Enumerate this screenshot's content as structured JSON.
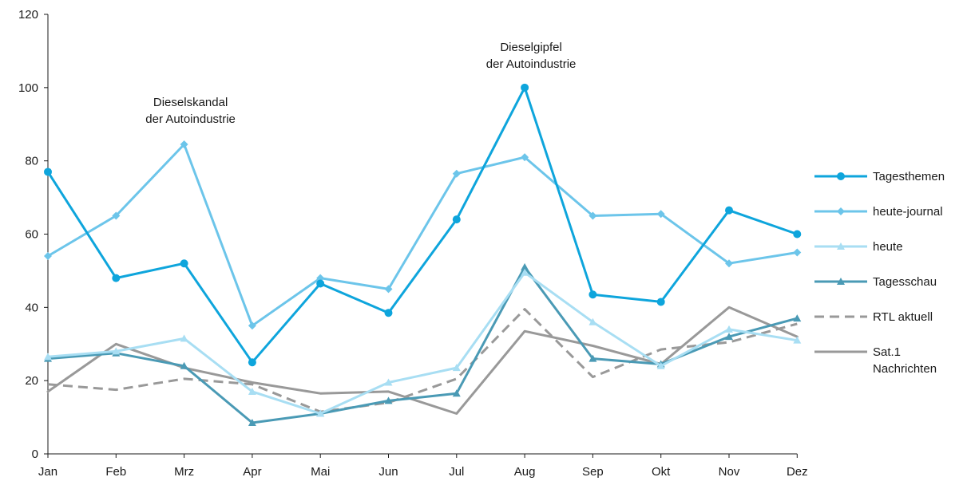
{
  "chart_data": {
    "type": "line",
    "categories": [
      "Jan",
      "Feb",
      "Mrz",
      "Apr",
      "Mai",
      "Jun",
      "Jul",
      "Aug",
      "Sep",
      "Okt",
      "Nov",
      "Dez"
    ],
    "ylim": [
      0,
      120
    ],
    "yticks": [
      0,
      20,
      40,
      60,
      80,
      100,
      120
    ],
    "grid": false,
    "legend_position": "right",
    "series": [
      {
        "name": "Tagesthemen",
        "color": "#0ea5dc",
        "marker": "circle",
        "dash": "solid",
        "values": [
          77,
          48,
          52,
          25,
          46.5,
          38.5,
          64,
          100,
          43.5,
          41.5,
          66.5,
          60
        ]
      },
      {
        "name": "heute-journal",
        "color": "#6cc5ea",
        "marker": "diamond",
        "dash": "solid",
        "values": [
          54,
          65,
          84.5,
          35,
          48,
          45,
          76.5,
          81,
          65,
          65.5,
          52,
          55
        ]
      },
      {
        "name": "heute",
        "color": "#a8def3",
        "marker": "triangle",
        "dash": "solid",
        "values": [
          26.5,
          28,
          31.5,
          17,
          11,
          19.5,
          23.5,
          49.5,
          36,
          24,
          34,
          31
        ]
      },
      {
        "name": "Tagesschau",
        "color": "#4a9ab5",
        "marker": "triangle",
        "dash": "solid",
        "values": [
          26,
          27.5,
          24,
          8.5,
          11,
          14.5,
          16.5,
          51,
          26,
          24.5,
          32,
          37
        ]
      },
      {
        "name": "RTL aktuell",
        "color": "#999999",
        "marker": "none",
        "dash": "dashed",
        "values": [
          19,
          17.5,
          20.5,
          19,
          11.5,
          14,
          20.5,
          39.5,
          21,
          28.5,
          30.5,
          35.5
        ]
      },
      {
        "name": [
          "Sat.1",
          "Nachrichten"
        ],
        "color": "#999999",
        "marker": "none",
        "dash": "solid",
        "values": [
          17,
          30,
          23.5,
          19.5,
          16.5,
          17,
          11,
          33.5,
          29.5,
          24.5,
          40,
          32
        ]
      }
    ],
    "annotations": [
      {
        "lines": [
          "Dieselskandal",
          "der Autoindustrie"
        ],
        "category": "Mrz",
        "y": 95
      },
      {
        "lines": [
          "Dieselgipfel",
          "der Autoindustrie"
        ],
        "category": "Aug",
        "y": 110
      }
    ]
  }
}
